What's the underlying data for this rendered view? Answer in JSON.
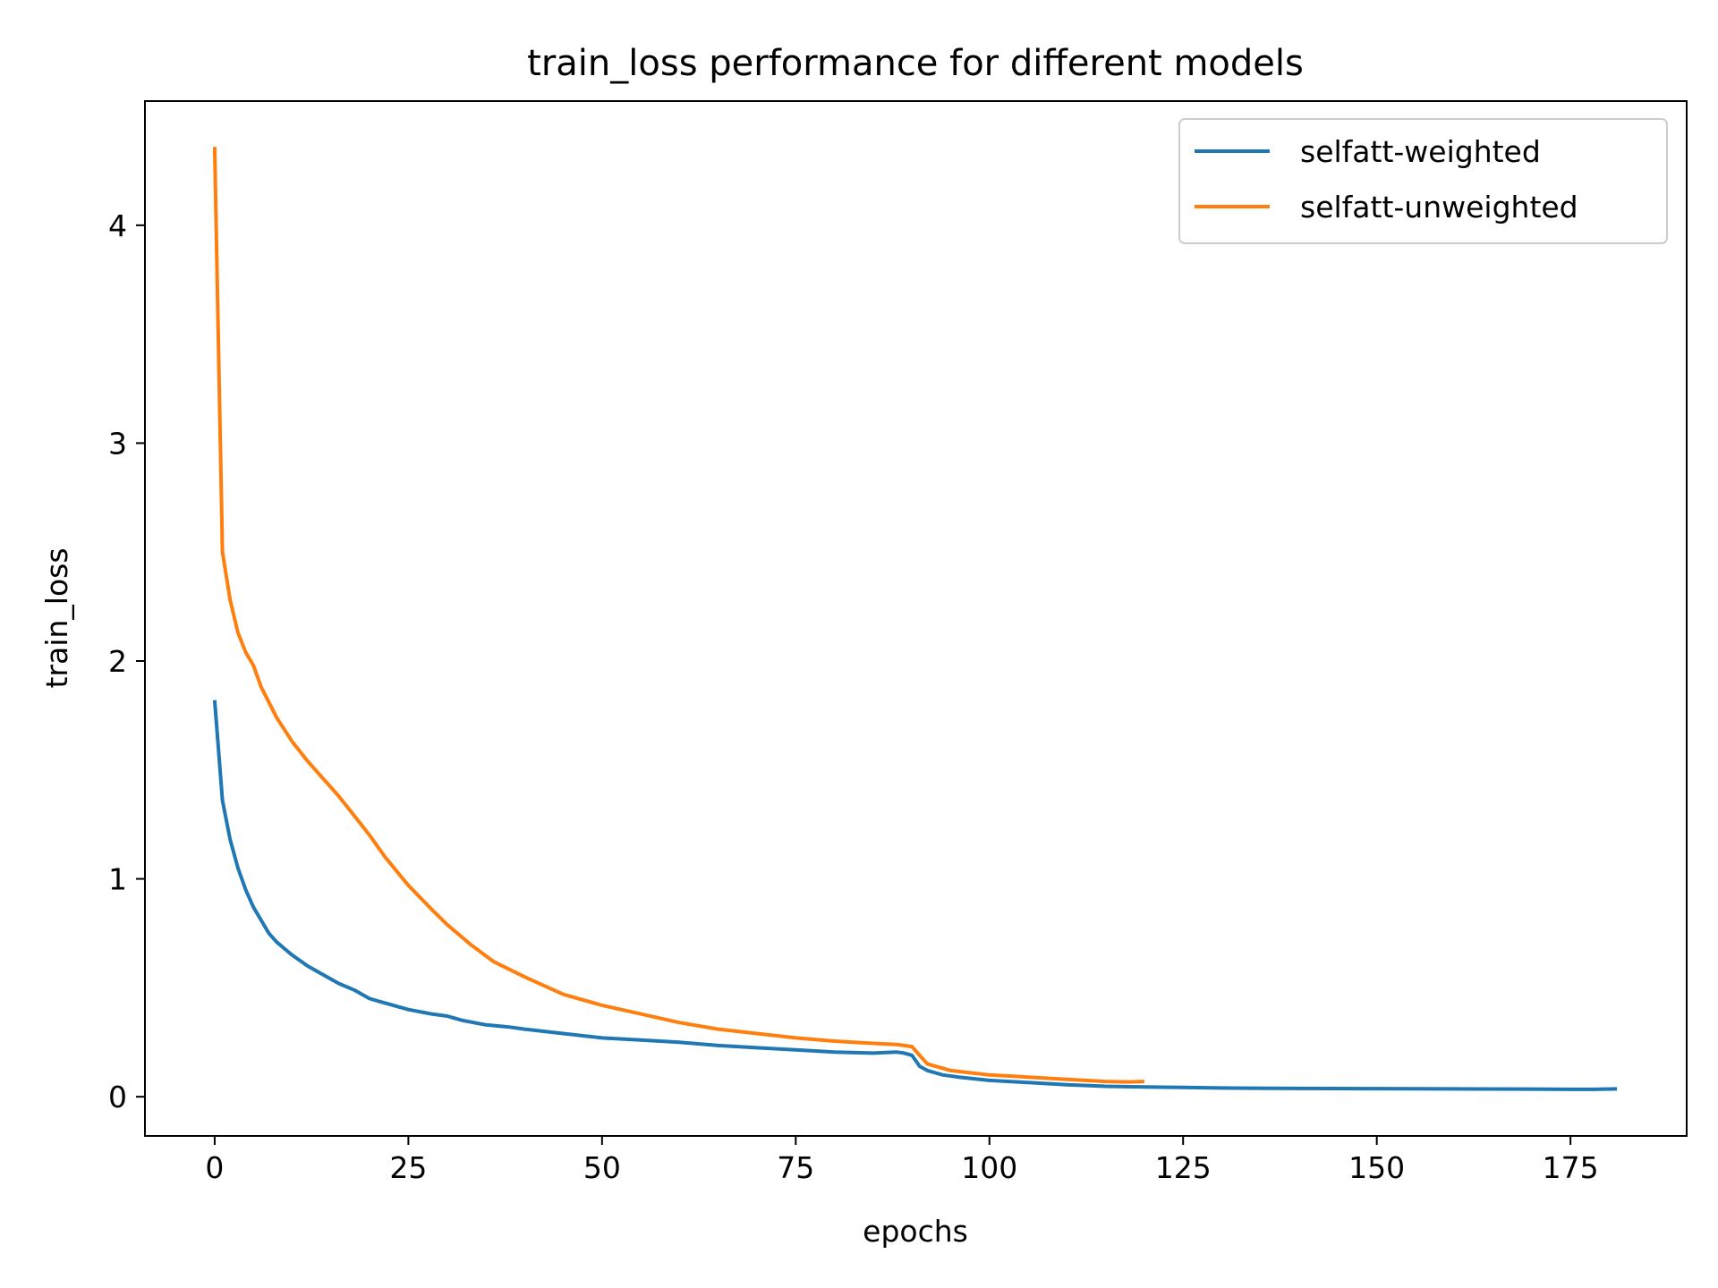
{
  "chart_data": {
    "type": "line",
    "title": "train_loss performance for different models",
    "xlabel": "epochs",
    "ylabel": "train_loss",
    "xlim": [
      -9,
      190
    ],
    "ylim": [
      -0.18,
      4.57
    ],
    "xticks": [
      0,
      25,
      50,
      75,
      100,
      125,
      150,
      175
    ],
    "yticks": [
      0,
      1,
      2,
      3,
      4
    ],
    "grid": false,
    "legend_position": "top-right",
    "series": [
      {
        "name": "selfatt-weighted",
        "color": "#1f77b4",
        "x": [
          0,
          1,
          2,
          3,
          4,
          5,
          6,
          7,
          8,
          9,
          10,
          12,
          14,
          16,
          18,
          20,
          22,
          25,
          28,
          30,
          32,
          35,
          38,
          40,
          45,
          50,
          55,
          60,
          65,
          70,
          75,
          80,
          85,
          88,
          89,
          90,
          91,
          92,
          94,
          96,
          100,
          105,
          110,
          115,
          120,
          125,
          130,
          140,
          150,
          160,
          170,
          175,
          178,
          181
        ],
        "y": [
          1.82,
          1.36,
          1.18,
          1.05,
          0.95,
          0.87,
          0.81,
          0.75,
          0.71,
          0.68,
          0.65,
          0.6,
          0.56,
          0.52,
          0.49,
          0.45,
          0.43,
          0.4,
          0.38,
          0.37,
          0.35,
          0.33,
          0.32,
          0.31,
          0.29,
          0.27,
          0.26,
          0.25,
          0.235,
          0.225,
          0.215,
          0.205,
          0.2,
          0.205,
          0.2,
          0.19,
          0.14,
          0.12,
          0.1,
          0.09,
          0.075,
          0.065,
          0.055,
          0.048,
          0.045,
          0.043,
          0.04,
          0.038,
          0.037,
          0.036,
          0.035,
          0.034,
          0.034,
          0.036
        ]
      },
      {
        "name": "selfatt-unweighted",
        "color": "#ff7f0e",
        "x": [
          0,
          0.3,
          1,
          2,
          3,
          4,
          5,
          6,
          8,
          10,
          12,
          14,
          16,
          18,
          20,
          22,
          25,
          28,
          30,
          33,
          36,
          40,
          45,
          50,
          55,
          60,
          65,
          70,
          75,
          80,
          85,
          88,
          89,
          90,
          91,
          92,
          95,
          100,
          105,
          110,
          115,
          118,
          120
        ],
        "y": [
          4.36,
          3.8,
          2.5,
          2.28,
          2.13,
          2.04,
          1.98,
          1.88,
          1.74,
          1.63,
          1.54,
          1.46,
          1.38,
          1.29,
          1.2,
          1.1,
          0.97,
          0.86,
          0.79,
          0.7,
          0.62,
          0.55,
          0.47,
          0.42,
          0.38,
          0.34,
          0.31,
          0.29,
          0.27,
          0.255,
          0.245,
          0.24,
          0.235,
          0.23,
          0.19,
          0.15,
          0.12,
          0.1,
          0.09,
          0.08,
          0.07,
          0.068,
          0.07
        ]
      }
    ]
  }
}
